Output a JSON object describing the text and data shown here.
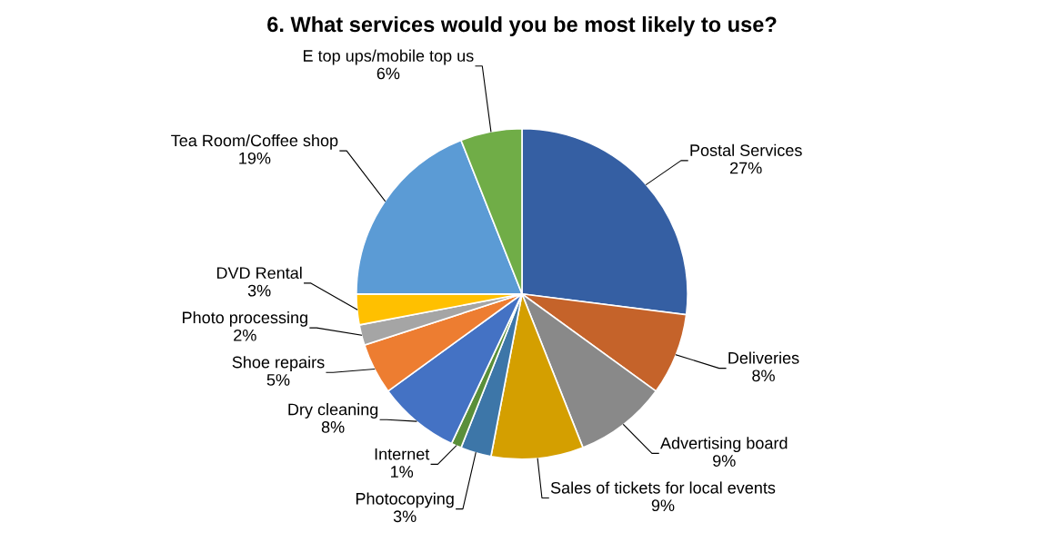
{
  "chart_data": {
    "type": "pie",
    "title": "6. What services would you be most likely to use?",
    "categories": [
      "Postal Services",
      "Deliveries",
      "Advertising board",
      "Sales of tickets for local events",
      "Photocopying",
      "Internet",
      "Dry cleaning",
      "Shoe repairs",
      "Photo processing",
      "DVD Rental",
      "Tea Room/Coffee shop",
      "E top ups/mobile top us"
    ],
    "values": [
      27,
      8,
      9,
      9,
      3,
      1,
      8,
      5,
      2,
      3,
      19,
      6
    ],
    "value_labels": [
      "27%",
      "8%",
      "9%",
      "9%",
      "3%",
      "1%",
      "8%",
      "5%",
      "2%",
      "3%",
      "19%",
      "6%"
    ],
    "colors": [
      "#355fa3",
      "#c5632a",
      "#898989",
      "#d49f00",
      "#3d76a8",
      "#5a8f3a",
      "#4472c4",
      "#ed7d31",
      "#a5a5a5",
      "#ffc000",
      "#5b9bd5",
      "#70ad47"
    ],
    "legend": false
  }
}
